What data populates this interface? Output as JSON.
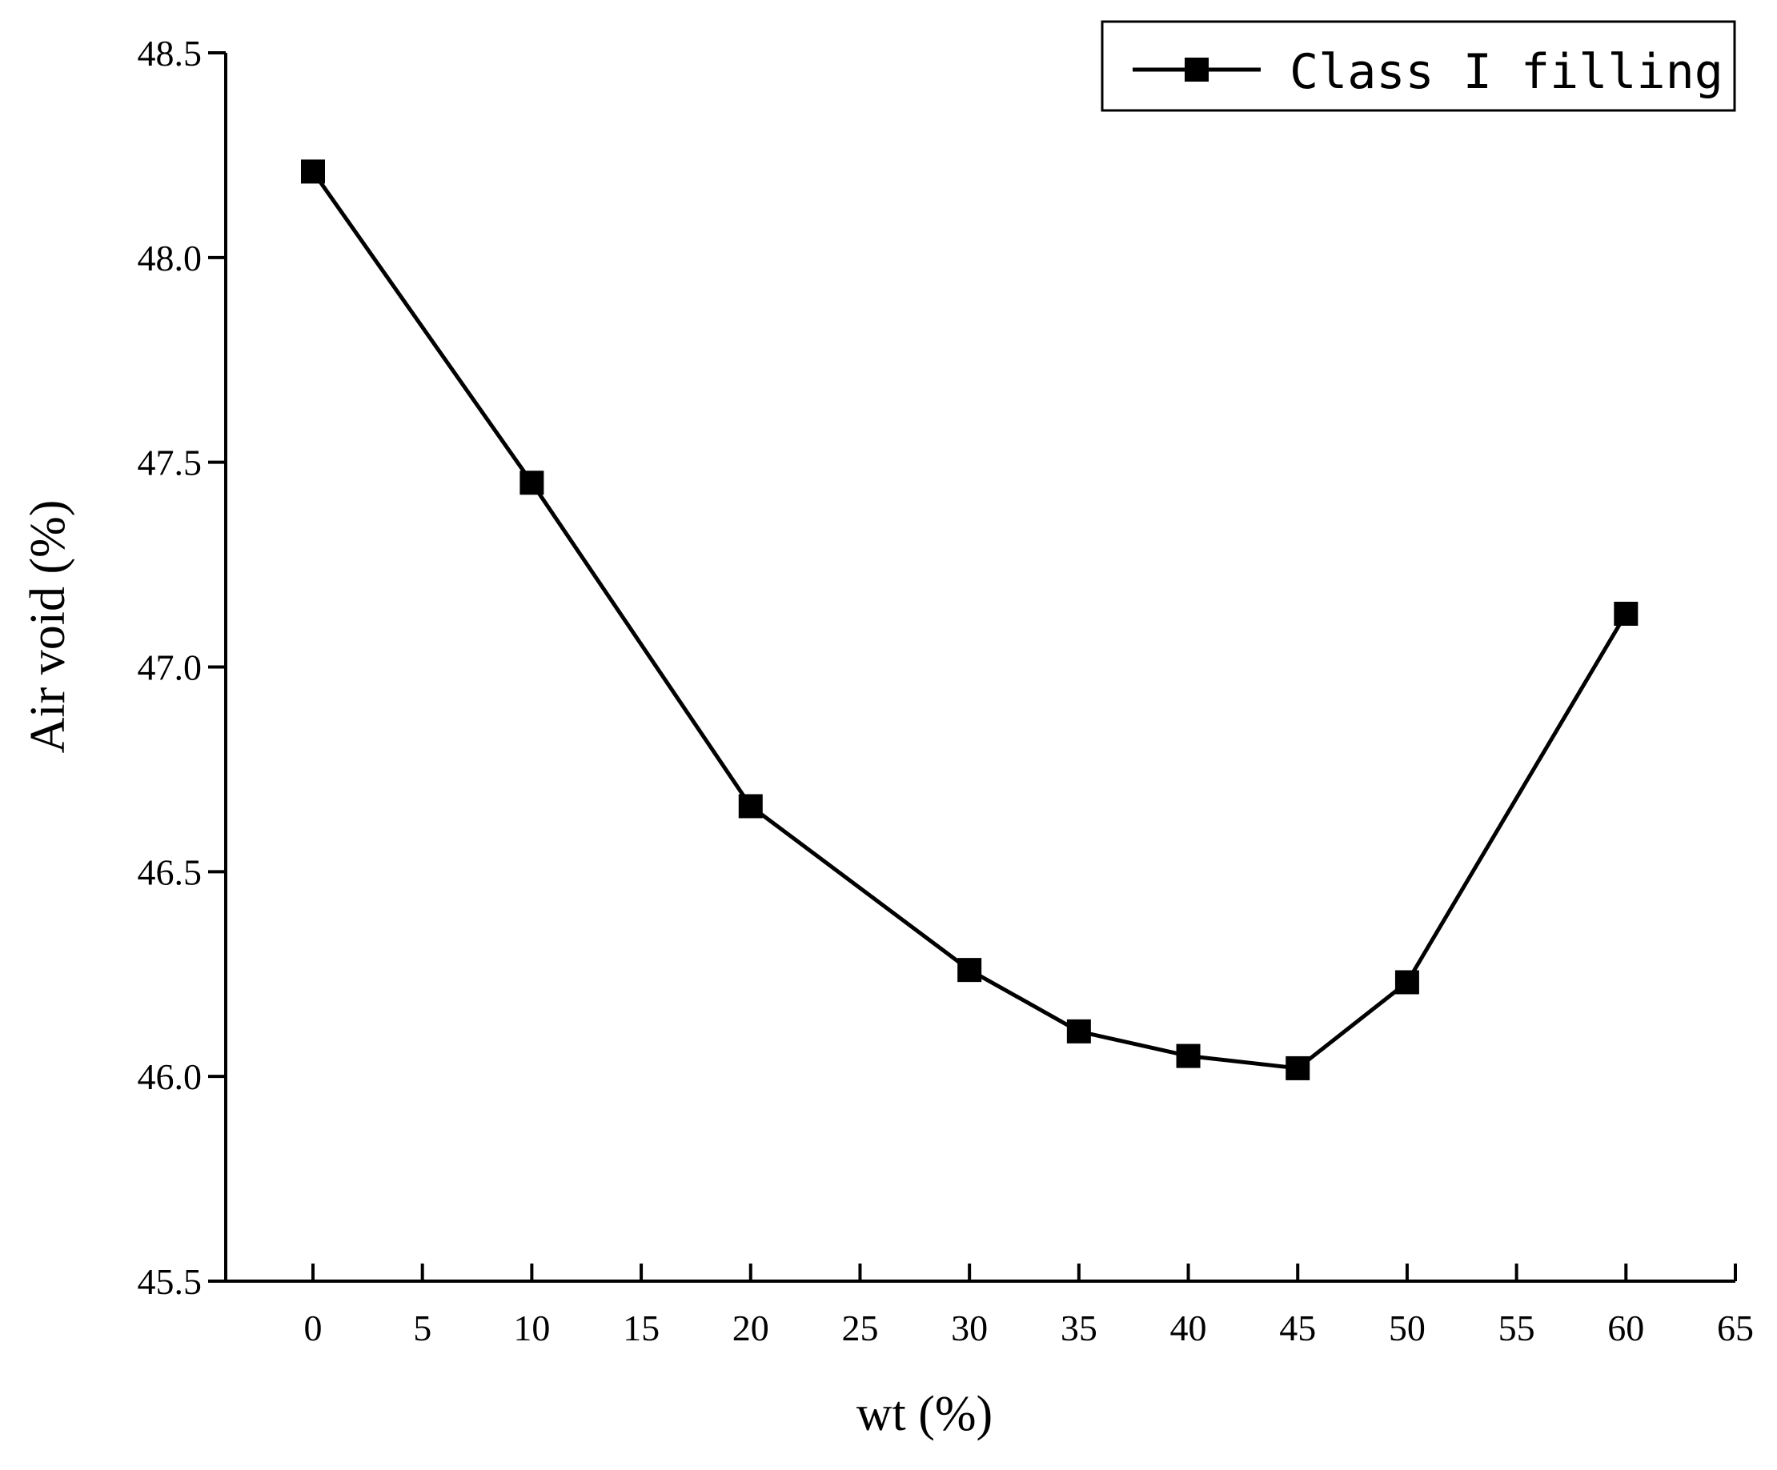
{
  "chart_data": {
    "type": "line",
    "title": "",
    "xlabel": "wt (%)",
    "ylabel": "Air void (%)",
    "xlim": [
      -4,
      65
    ],
    "ylim": [
      45.5,
      48.5
    ],
    "xticks": [
      0,
      5,
      10,
      15,
      20,
      25,
      30,
      35,
      40,
      45,
      50,
      55,
      60,
      65
    ],
    "yticks": [
      45.5,
      46.0,
      46.5,
      47.0,
      47.5,
      48.0,
      48.5
    ],
    "ytick_labels": [
      "45.5",
      "46.0",
      "46.5",
      "47.0",
      "47.5",
      "48.0",
      "48.5"
    ],
    "grid": false,
    "legend_position": "top-right",
    "series": [
      {
        "name": "Class I filling",
        "color": "#000000",
        "marker": "square",
        "x": [
          0,
          10,
          20,
          30,
          35,
          40,
          45,
          50,
          60
        ],
        "y": [
          48.21,
          47.45,
          46.66,
          46.26,
          46.11,
          46.05,
          46.02,
          46.23,
          47.13
        ]
      }
    ]
  }
}
